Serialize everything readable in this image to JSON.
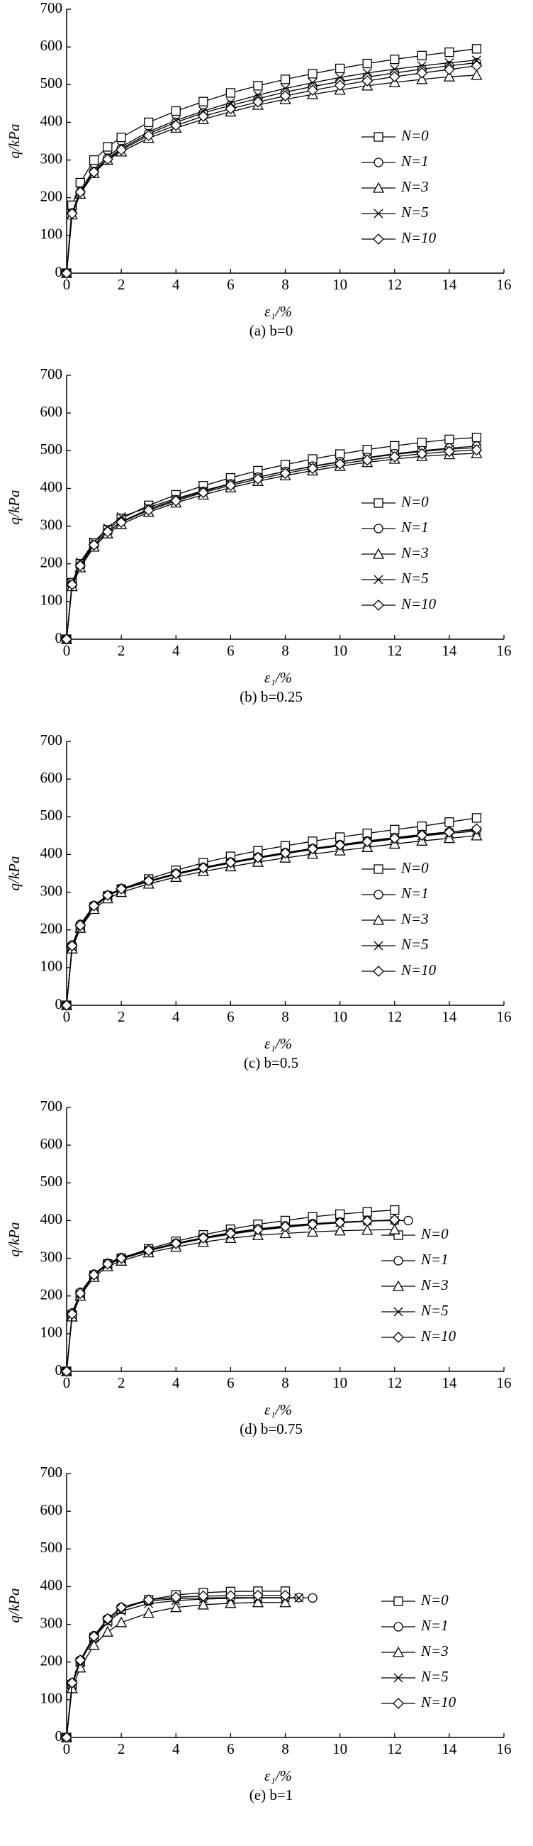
{
  "chart_data": [
    {
      "type": "line",
      "title": "(a) b=0",
      "xlabel": "ε₁/%",
      "ylabel": "q/kPa",
      "xlim": [
        0,
        16
      ],
      "ylim": [
        0,
        700
      ],
      "xticks": [
        0,
        2,
        4,
        6,
        8,
        10,
        12,
        14,
        16
      ],
      "yticks": [
        0,
        100,
        200,
        300,
        400,
        500,
        600,
        700
      ],
      "grid": false,
      "legend": "right",
      "x": [
        0,
        0.2,
        0.5,
        1,
        1.5,
        2,
        3,
        4,
        5,
        6,
        7,
        8,
        9,
        10,
        11,
        12,
        13,
        14,
        15
      ],
      "series": [
        {
          "name": "N=0",
          "color": "#000000",
          "marker": "square",
          "values": [
            0,
            180,
            240,
            300,
            335,
            360,
            400,
            430,
            455,
            478,
            497,
            514,
            529,
            543,
            556,
            567,
            577,
            586,
            595
          ]
        },
        {
          "name": "N=1",
          "color": "#000000",
          "marker": "circle",
          "values": [
            0,
            160,
            215,
            270,
            305,
            330,
            370,
            400,
            425,
            445,
            463,
            480,
            495,
            508,
            520,
            531,
            541,
            550,
            558
          ]
        },
        {
          "name": "N=3",
          "color": "#000000",
          "marker": "triangle",
          "values": [
            0,
            155,
            210,
            265,
            300,
            322,
            358,
            385,
            408,
            428,
            446,
            461,
            474,
            486,
            497,
            506,
            514,
            521,
            525
          ]
        },
        {
          "name": "N=5",
          "color": "#000000",
          "marker": "x",
          "values": [
            0,
            160,
            220,
            275,
            310,
            335,
            375,
            405,
            430,
            452,
            472,
            490,
            505,
            519,
            531,
            541,
            550,
            558,
            565
          ]
        },
        {
          "name": "N=10",
          "color": "#000000",
          "marker": "diamond",
          "values": [
            0,
            158,
            215,
            268,
            302,
            327,
            365,
            392,
            416,
            436,
            454,
            470,
            485,
            498,
            510,
            521,
            531,
            540,
            550
          ]
        }
      ]
    },
    {
      "type": "line",
      "title": "(b) b=0.25",
      "xlabel": "ε₁/%",
      "ylabel": "q/kPa",
      "xlim": [
        0,
        16
      ],
      "ylim": [
        0,
        700
      ],
      "xticks": [
        0,
        2,
        4,
        6,
        8,
        10,
        12,
        14,
        16
      ],
      "yticks": [
        0,
        100,
        200,
        300,
        400,
        500,
        600,
        700
      ],
      "grid": false,
      "legend": "right",
      "x": [
        0,
        0.2,
        0.5,
        1,
        1.5,
        2,
        3,
        4,
        5,
        6,
        7,
        8,
        9,
        10,
        11,
        12,
        13,
        14,
        15
      ],
      "series": [
        {
          "name": "N=0",
          "color": "#000000",
          "marker": "square",
          "values": [
            0,
            150,
            200,
            255,
            290,
            320,
            355,
            383,
            407,
            428,
            447,
            463,
            478,
            491,
            503,
            513,
            522,
            530,
            535
          ]
        },
        {
          "name": "N=1",
          "color": "#000000",
          "marker": "circle",
          "values": [
            0,
            145,
            195,
            250,
            285,
            312,
            345,
            370,
            392,
            412,
            430,
            445,
            459,
            471,
            482,
            492,
            500,
            507,
            512
          ]
        },
        {
          "name": "N=3",
          "color": "#000000",
          "marker": "triangle",
          "values": [
            0,
            140,
            190,
            245,
            280,
            305,
            337,
            362,
            383,
            402,
            419,
            434,
            447,
            459,
            469,
            478,
            485,
            490,
            493
          ]
        },
        {
          "name": "N=5",
          "color": "#000000",
          "marker": "x",
          "values": [
            0,
            150,
            205,
            258,
            295,
            325,
            350,
            373,
            394,
            413,
            430,
            445,
            458,
            470,
            481,
            490,
            498,
            504,
            508
          ]
        },
        {
          "name": "N=10",
          "color": "#000000",
          "marker": "diamond",
          "values": [
            0,
            145,
            195,
            250,
            285,
            310,
            342,
            367,
            389,
            408,
            425,
            440,
            453,
            465,
            475,
            484,
            492,
            498,
            502
          ]
        }
      ]
    },
    {
      "type": "line",
      "title": "(c) b=0.5",
      "xlabel": "ε₁/%",
      "ylabel": "q/kPa",
      "xlim": [
        0,
        16
      ],
      "ylim": [
        0,
        700
      ],
      "xticks": [
        0,
        2,
        4,
        6,
        8,
        10,
        12,
        14,
        16
      ],
      "yticks": [
        0,
        100,
        200,
        300,
        400,
        500,
        600,
        700
      ],
      "grid": false,
      "legend": "right",
      "x": [
        0,
        0.2,
        0.5,
        1,
        1.5,
        2,
        3,
        4,
        5,
        6,
        7,
        8,
        9,
        10,
        11,
        12,
        13,
        14,
        15
      ],
      "series": [
        {
          "name": "N=0",
          "color": "#000000",
          "marker": "square",
          "values": [
            0,
            150,
            205,
            260,
            290,
            308,
            335,
            358,
            378,
            395,
            410,
            423,
            435,
            446,
            456,
            466,
            475,
            486,
            497
          ]
        },
        {
          "name": "N=1",
          "color": "#000000",
          "marker": "circle",
          "values": [
            0,
            160,
            215,
            265,
            292,
            310,
            330,
            350,
            366,
            380,
            393,
            405,
            416,
            426,
            436,
            445,
            453,
            460,
            465
          ]
        },
        {
          "name": "N=3",
          "color": "#000000",
          "marker": "triangle",
          "values": [
            0,
            150,
            205,
            255,
            283,
            300,
            322,
            340,
            355,
            368,
            380,
            391,
            401,
            410,
            419,
            428,
            436,
            443,
            450
          ]
        },
        {
          "name": "N=5",
          "color": "#000000",
          "marker": "x",
          "values": [
            0,
            155,
            210,
            262,
            290,
            307,
            328,
            347,
            363,
            377,
            390,
            402,
            413,
            423,
            432,
            441,
            449,
            456,
            462
          ]
        },
        {
          "name": "N=10",
          "color": "#000000",
          "marker": "diamond",
          "values": [
            0,
            158,
            212,
            264,
            292,
            309,
            330,
            349,
            365,
            379,
            392,
            404,
            415,
            425,
            434,
            443,
            451,
            459,
            468
          ]
        }
      ]
    },
    {
      "type": "line",
      "title": "(d) b=0.75",
      "xlabel": "ε₁/%",
      "ylabel": "q/kPa",
      "xlim": [
        0,
        16
      ],
      "ylim": [
        0,
        700
      ],
      "xticks": [
        0,
        2,
        4,
        6,
        8,
        10,
        12,
        14,
        16
      ],
      "yticks": [
        0,
        100,
        200,
        300,
        400,
        500,
        600,
        700
      ],
      "grid": false,
      "legend": "right",
      "x": [
        0,
        0.2,
        0.5,
        1,
        1.5,
        2,
        3,
        4,
        5,
        6,
        7,
        8,
        9,
        10,
        11,
        12,
        12.5
      ],
      "series": [
        {
          "name": "N=0",
          "color": "#000000",
          "marker": "square",
          "values": [
            0,
            150,
            205,
            255,
            285,
            300,
            325,
            345,
            362,
            377,
            390,
            400,
            410,
            417,
            423,
            428,
            null
          ]
        },
        {
          "name": "N=1",
          "color": "#000000",
          "marker": "circle",
          "values": [
            0,
            155,
            210,
            258,
            287,
            302,
            322,
            340,
            355,
            368,
            378,
            386,
            392,
            396,
            399,
            400,
            400
          ]
        },
        {
          "name": "N=3",
          "color": "#000000",
          "marker": "triangle",
          "values": [
            0,
            145,
            200,
            250,
            278,
            293,
            315,
            330,
            343,
            353,
            361,
            366,
            370,
            373,
            375,
            376,
            null
          ]
        },
        {
          "name": "N=5",
          "color": "#000000",
          "marker": "x",
          "values": [
            0,
            150,
            205,
            255,
            283,
            298,
            320,
            337,
            352,
            364,
            374,
            382,
            389,
            394,
            398,
            401,
            null
          ]
        },
        {
          "name": "N=10",
          "color": "#000000",
          "marker": "diamond",
          "values": [
            0,
            152,
            207,
            256,
            285,
            300,
            321,
            339,
            354,
            366,
            376,
            384,
            390,
            395,
            399,
            402,
            null
          ]
        }
      ]
    },
    {
      "type": "line",
      "title": "(e) b=1",
      "xlabel": "ε₁/%",
      "ylabel": "q/kPa",
      "xlim": [
        0,
        16
      ],
      "ylim": [
        0,
        700
      ],
      "xticks": [
        0,
        2,
        4,
        6,
        8,
        10,
        12,
        14,
        16
      ],
      "yticks": [
        0,
        100,
        200,
        300,
        400,
        500,
        600,
        700
      ],
      "grid": false,
      "legend": "right",
      "x": [
        0,
        0.2,
        0.5,
        1,
        1.5,
        2,
        3,
        4,
        5,
        6,
        7,
        8,
        8.5,
        9
      ],
      "series": [
        {
          "name": "N=0",
          "color": "#000000",
          "marker": "square",
          "values": [
            0,
            140,
            200,
            265,
            310,
            340,
            365,
            378,
            384,
            387,
            388,
            388,
            null,
            null
          ]
        },
        {
          "name": "N=1",
          "color": "#000000",
          "marker": "circle",
          "values": [
            0,
            145,
            205,
            270,
            315,
            345,
            362,
            368,
            370,
            371,
            371,
            371,
            371,
            370
          ]
        },
        {
          "name": "N=3",
          "color": "#000000",
          "marker": "triangle",
          "values": [
            0,
            130,
            185,
            245,
            280,
            305,
            330,
            345,
            352,
            356,
            358,
            358,
            null,
            null
          ]
        },
        {
          "name": "N=5",
          "color": "#000000",
          "marker": "x",
          "values": [
            0,
            140,
            200,
            265,
            305,
            335,
            355,
            363,
            367,
            369,
            370,
            370,
            370,
            null
          ]
        },
        {
          "name": "N=10",
          "color": "#000000",
          "marker": "diamond",
          "values": [
            0,
            145,
            205,
            268,
            315,
            345,
            365,
            372,
            375,
            376,
            377,
            377,
            null,
            null
          ]
        }
      ]
    }
  ]
}
